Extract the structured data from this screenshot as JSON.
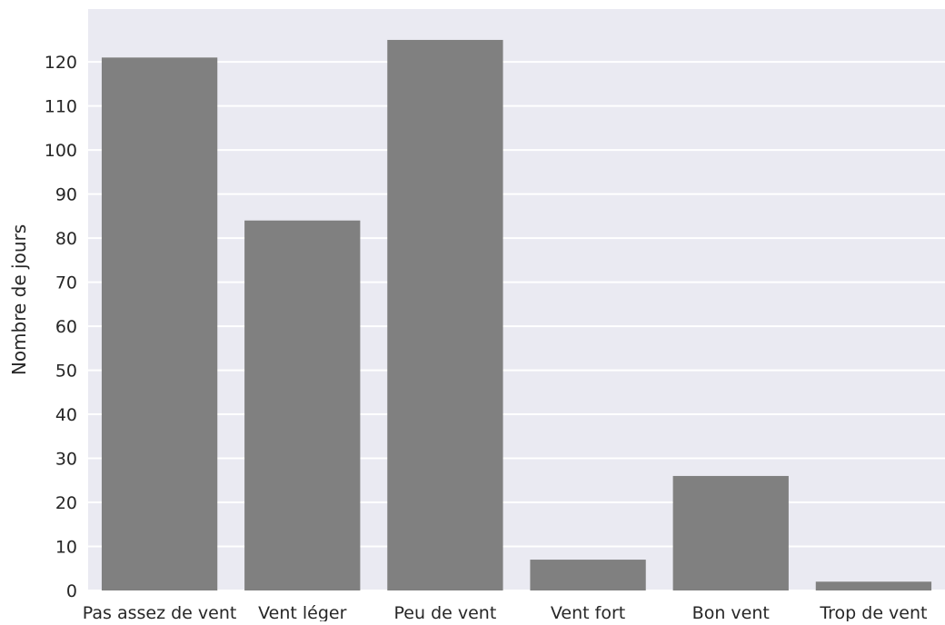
{
  "chart_data": {
    "type": "bar",
    "title": "",
    "xlabel": "",
    "ylabel": "Nombre de jours",
    "categories": [
      "Pas assez de vent",
      "Vent léger",
      "Peu de vent",
      "Vent fort",
      "Bon vent",
      "Trop de vent"
    ],
    "values": [
      121,
      84,
      125,
      7,
      26,
      2
    ],
    "ylim": [
      0,
      132
    ],
    "yticks": [
      0,
      10,
      20,
      30,
      40,
      50,
      60,
      70,
      80,
      90,
      100,
      110,
      120
    ],
    "grid": true,
    "colors": {
      "bar": "#808080",
      "plot_background": "#eaeaf2",
      "grid": "#ffffff",
      "text": "#262626"
    }
  }
}
